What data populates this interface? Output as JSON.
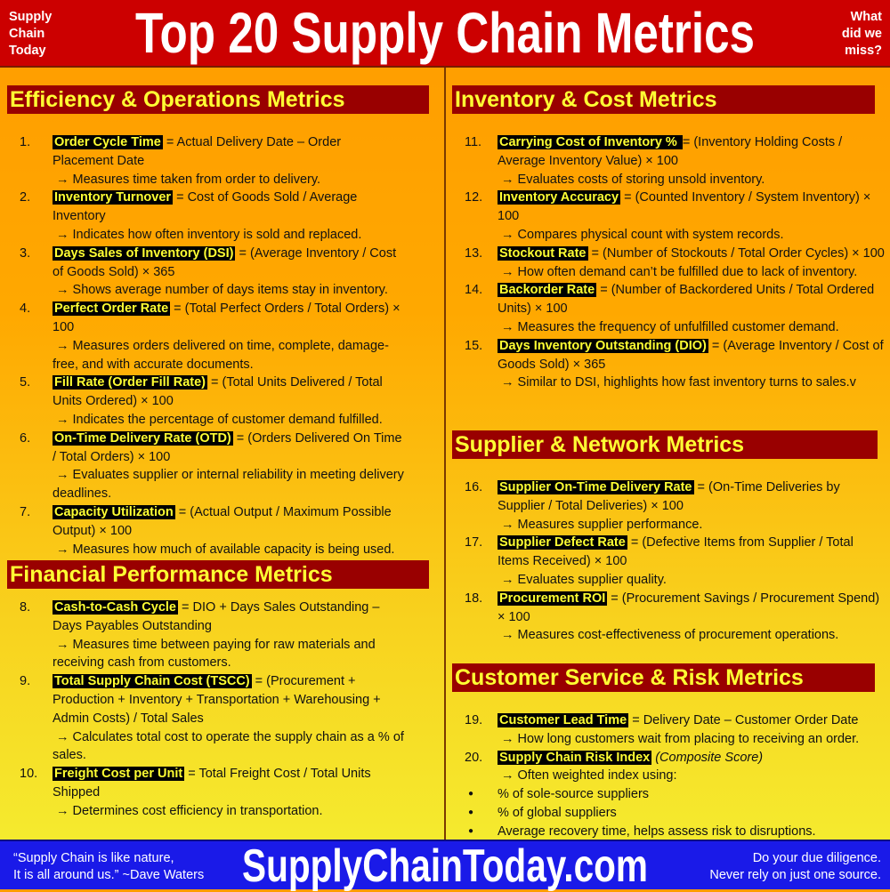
{
  "header": {
    "left_lines": [
      "Supply",
      "Chain",
      "Today"
    ],
    "title": "Top 20 Supply Chain Metrics",
    "right_lines": [
      "What",
      "did we",
      "miss?"
    ]
  },
  "sections": [
    {
      "id": "efficiency",
      "title": "Efficiency & Operations Metrics",
      "items": [
        {
          "num": "1.",
          "name": "Order Cycle Time",
          "formula": " = Actual Delivery Date – Order Placement Date",
          "note": "→ Measures time taken from order to delivery."
        },
        {
          "num": "2.",
          "name": "Inventory Turnover",
          "formula": " = Cost of Goods Sold / Average Inventory",
          "note": "→ Indicates how often inventory is sold and replaced."
        },
        {
          "num": "3.",
          "name": "Days Sales of Inventory (DSI)",
          "formula": " = (Average Inventory / Cost of Goods Sold) × 365",
          "note": "→ Shows average number of days items stay in inventory."
        },
        {
          "num": "4.",
          "name": "Perfect Order Rate",
          "formula": " = (Total Perfect Orders / Total Orders) × 100",
          "note": "→ Measures orders delivered on time, complete, damage-free, and with accurate documents."
        },
        {
          "num": "5.",
          "name": "Fill Rate (Order Fill Rate)",
          "formula": " = (Total Units Delivered / Total Units Ordered) × 100",
          "note": "→ Indicates the percentage of customer demand fulfilled."
        },
        {
          "num": "6.",
          "name": "On-Time Delivery Rate (OTD)",
          "formula": " = (Orders Delivered On Time / Total Orders) × 100",
          "note": "→ Evaluates supplier or internal reliability in meeting delivery deadlines."
        },
        {
          "num": "7.",
          "name": "Capacity Utilization",
          "formula": " = (Actual Output / Maximum Possible Output) × 100",
          "note": "→ Measures how much of available capacity is being used."
        }
      ]
    },
    {
      "id": "financial",
      "title": "Financial Performance Metrics",
      "items": [
        {
          "num": "8.",
          "name": "Cash-to-Cash Cycle",
          "formula": " = DIO + Days Sales Outstanding – Days Payables Outstanding",
          "note": "→ Measures time between paying for raw materials and receiving cash from customers."
        },
        {
          "num": "9.",
          "name": "Total Supply Chain Cost (TSCC)",
          "formula": " = (Procurement + Production + Inventory + Transportation + Warehousing + Admin Costs) / Total Sales",
          "note": "→ Calculates total cost to operate the supply chain as a % of sales."
        },
        {
          "num": "10.",
          "name": "Freight Cost per Unit",
          "formula": " = Total Freight Cost / Total Units Shipped",
          "note": "→ Determines cost efficiency in transportation."
        }
      ]
    },
    {
      "id": "inventory",
      "title": "Inventory & Cost Metrics",
      "items": [
        {
          "num": "11.",
          "name": "Carrying Cost of Inventory % ",
          "formula": " = (Inventory Holding Costs / Average Inventory Value) × 100",
          "note": "→ Evaluates costs of storing unsold inventory."
        },
        {
          "num": "12.",
          "name": "Inventory Accuracy",
          "formula": " = (Counted Inventory / System Inventory) × 100",
          "note": "→ Compares physical count with system records."
        },
        {
          "num": "13.",
          "name": "Stockout Rate",
          "formula": " = (Number of Stockouts / Total Order Cycles) × 100",
          "note": "→ How often demand can’t be fulfilled due to lack of inventory."
        },
        {
          "num": "14.",
          "name": "Backorder Rate",
          "formula": " = (Number of Backordered Units / Total Ordered Units) × 100",
          "note": "→ Measures the frequency of unfulfilled customer demand."
        },
        {
          "num": "15.",
          "name": "Days Inventory Outstanding (DIO)",
          "formula": " = (Average Inventory / Cost of Goods Sold) × 365",
          "note": "→ Similar to DSI, highlights how fast inventory turns to sales.v"
        }
      ]
    },
    {
      "id": "supplier",
      "title": "Supplier & Network Metrics",
      "items": [
        {
          "num": "16.",
          "name": "Supplier On-Time Delivery Rate",
          "formula": " = (On-Time Deliveries by Supplier / Total Deliveries) × 100",
          "note": "→ Measures supplier performance."
        },
        {
          "num": "17.",
          "name": "Supplier Defect Rate",
          "formula": " = (Defective Items from Supplier / Total Items Received) × 100",
          "note": "→ Evaluates supplier quality."
        },
        {
          "num": "18.",
          "name": "Procurement ROI",
          "formula": " = (Procurement Savings / Procurement Spend) × 100",
          "note": "→ Measures cost-effectiveness of procurement operations."
        }
      ]
    },
    {
      "id": "customer",
      "title": "Customer Service & Risk Metrics",
      "items": [
        {
          "num": "19.",
          "name": "Customer Lead Time",
          "formula": " = Delivery Date – Customer Order Date",
          "note": "→ How long customers wait from placing to receiving an order."
        },
        {
          "num": "20.",
          "name": "Supply Chain Risk Index",
          "formula_italic": " (Composite Score)",
          "note": "→ Often weighted index using:",
          "bullets": [
            "% of sole-source suppliers",
            "% of global suppliers",
            "Average recovery time, helps assess risk to disruptions."
          ]
        }
      ]
    }
  ],
  "footer": {
    "quote_lines": [
      "“Supply Chain is like nature,",
      "It is all around us.” ~Dave Waters"
    ],
    "site": "SupplyChainToday.com",
    "disclaimer_lines": [
      "Do your due diligence.",
      "Never rely on just one source."
    ]
  },
  "colors": {
    "header": "#cc0000",
    "section_bar": "#990000",
    "section_text": "#ffff33",
    "highlight_bg": "#000000",
    "highlight_text": "#ffff33",
    "footer": "#1a1ae8"
  }
}
